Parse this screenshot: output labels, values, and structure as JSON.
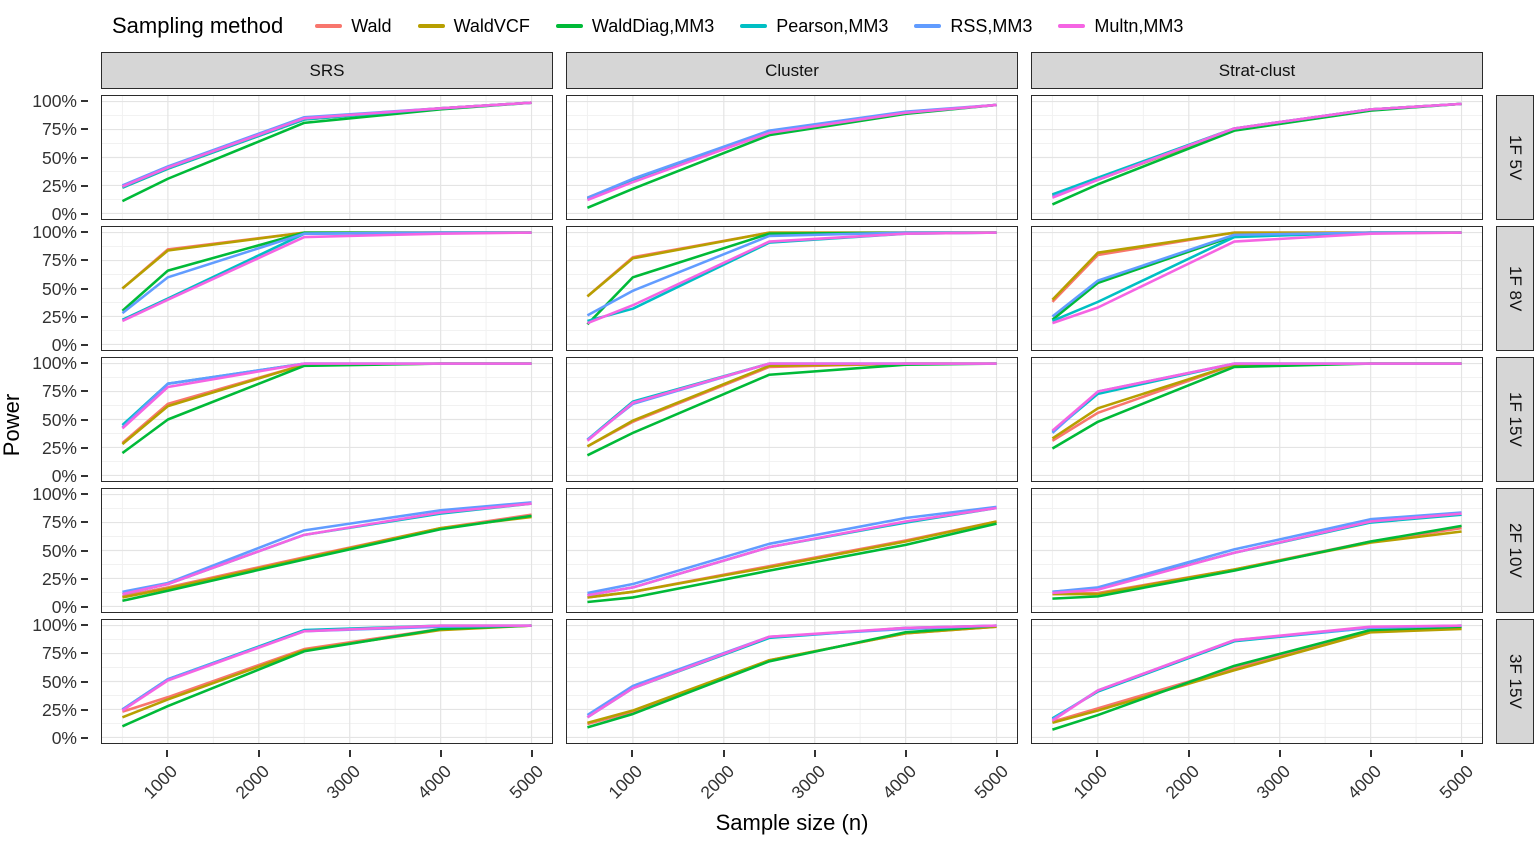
{
  "legend": {
    "title": "Sampling method",
    "items": [
      {
        "label": "Wald",
        "color": "#F8766D"
      },
      {
        "label": "WaldVCF",
        "color": "#B79F00"
      },
      {
        "label": "WaldDiag,MM3",
        "color": "#00BA38"
      },
      {
        "label": "Pearson,MM3",
        "color": "#00BFC4"
      },
      {
        "label": "RSS,MM3",
        "color": "#619CFF"
      },
      {
        "label": "Multn,MM3",
        "color": "#F564E3"
      }
    ]
  },
  "axes": {
    "x_title": "Sample size (n)",
    "y_title": "Power",
    "x_ticks": [
      1000,
      2000,
      3000,
      4000,
      5000
    ],
    "y_ticks": [
      "100%",
      "75%",
      "50%",
      "25%",
      "0%"
    ],
    "y_tick_values": [
      100,
      75,
      50,
      25,
      0
    ]
  },
  "facets": {
    "columns": [
      "SRS",
      "Cluster",
      "Strat-clust"
    ],
    "rows": [
      "1F 5V",
      "1F 8V",
      "1F 15V",
      "2F 10V",
      "3F 15V"
    ]
  },
  "colors": {
    "panel_border": "#2b2b2b",
    "strip_bg": "#d6d6d6",
    "grid_major": "#e4e4e4",
    "grid_minor": "#f1f1f1"
  },
  "chart_data": {
    "type": "line",
    "x": [
      500,
      1000,
      2500,
      4000,
      5000
    ],
    "x_range": [
      275,
      5225
    ],
    "y_range": [
      -5,
      105
    ],
    "x_minor": [
      500,
      1500,
      2500,
      3500,
      4500
    ],
    "y_minor": [
      12.5,
      37.5,
      62.5,
      87.5
    ],
    "series_names": [
      "Wald",
      "WaldVCF",
      "WaldDiag,MM3",
      "Pearson,MM3",
      "RSS,MM3",
      "Multn,MM3"
    ],
    "panels": [
      {
        "column": "SRS",
        "row": "1F 5V",
        "series": [
          {
            "name": "Wald",
            "values": [
              24,
              41,
              85,
              94,
              99
            ]
          },
          {
            "name": "WaldVCF",
            "values": [
              23,
              40,
              84,
              94,
              99
            ]
          },
          {
            "name": "WaldDiag,MM3",
            "values": [
              11,
              31,
              81,
              93,
              99
            ]
          },
          {
            "name": "Pearson,MM3",
            "values": [
              23,
              40,
              84,
              94,
              99
            ]
          },
          {
            "name": "RSS,MM3",
            "values": [
              25,
              42,
              86,
              94,
              99
            ]
          },
          {
            "name": "Multn,MM3",
            "values": [
              24,
              41,
              85,
              94,
              99
            ]
          }
        ]
      },
      {
        "column": "Cluster",
        "row": "1F 5V",
        "series": [
          {
            "name": "Wald",
            "values": [
              14,
              30,
              73,
              90,
              97
            ]
          },
          {
            "name": "WaldVCF",
            "values": [
              13,
              29,
              72,
              90,
              97
            ]
          },
          {
            "name": "WaldDiag,MM3",
            "values": [
              5,
              22,
              70,
              89,
              97
            ]
          },
          {
            "name": "Pearson,MM3",
            "values": [
              13,
              30,
              73,
              90,
              97
            ]
          },
          {
            "name": "RSS,MM3",
            "values": [
              14,
              31,
              74,
              91,
              97
            ]
          },
          {
            "name": "Multn,MM3",
            "values": [
              12,
              28,
              72,
              90,
              97
            ]
          }
        ]
      },
      {
        "column": "Strat-clust",
        "row": "1F 5V",
        "series": [
          {
            "name": "Wald",
            "values": [
              17,
              31,
              76,
              93,
              98
            ]
          },
          {
            "name": "WaldVCF",
            "values": [
              16,
              30,
              75,
              93,
              98
            ]
          },
          {
            "name": "WaldDiag,MM3",
            "values": [
              8,
              26,
              74,
              92,
              98
            ]
          },
          {
            "name": "Pearson,MM3",
            "values": [
              17,
              32,
              76,
              93,
              98
            ]
          },
          {
            "name": "RSS,MM3",
            "values": [
              15,
              30,
              76,
              93,
              98
            ]
          },
          {
            "name": "Multn,MM3",
            "values": [
              14,
              30,
              76,
              93,
              98
            ]
          }
        ]
      },
      {
        "column": "SRS",
        "row": "1F 8V",
        "series": [
          {
            "name": "Wald",
            "values": [
              50,
              85,
              100,
              100,
              100
            ]
          },
          {
            "name": "WaldVCF",
            "values": [
              50,
              84,
              100,
              100,
              100
            ]
          },
          {
            "name": "WaldDiag,MM3",
            "values": [
              30,
              66,
              100,
              100,
              100
            ]
          },
          {
            "name": "Pearson,MM3",
            "values": [
              22,
              41,
              99,
              100,
              100
            ]
          },
          {
            "name": "RSS,MM3",
            "values": [
              28,
              60,
              99,
              100,
              100
            ]
          },
          {
            "name": "Multn,MM3",
            "values": [
              21,
              40,
              96,
              99,
              100
            ]
          }
        ]
      },
      {
        "column": "Cluster",
        "row": "1F 8V",
        "series": [
          {
            "name": "Wald",
            "values": [
              43,
              78,
              100,
              100,
              100
            ]
          },
          {
            "name": "WaldVCF",
            "values": [
              43,
              77,
              100,
              100,
              100
            ]
          },
          {
            "name": "WaldDiag,MM3",
            "values": [
              18,
              60,
              99,
              100,
              100
            ]
          },
          {
            "name": "Pearson,MM3",
            "values": [
              21,
              32,
              91,
              99,
              100
            ]
          },
          {
            "name": "RSS,MM3",
            "values": [
              26,
              48,
              97,
              100,
              100
            ]
          },
          {
            "name": "Multn,MM3",
            "values": [
              19,
              35,
              92,
              99,
              100
            ]
          }
        ]
      },
      {
        "column": "Strat-clust",
        "row": "1F 8V",
        "series": [
          {
            "name": "Wald",
            "values": [
              38,
              80,
              100,
              100,
              100
            ]
          },
          {
            "name": "WaldVCF",
            "values": [
              40,
              82,
              100,
              100,
              100
            ]
          },
          {
            "name": "WaldDiag,MM3",
            "values": [
              22,
              55,
              97,
              100,
              100
            ]
          },
          {
            "name": "Pearson,MM3",
            "values": [
              21,
              38,
              96,
              100,
              100
            ]
          },
          {
            "name": "RSS,MM3",
            "values": [
              25,
              57,
              98,
              100,
              100
            ]
          },
          {
            "name": "Multn,MM3",
            "values": [
              19,
              33,
              92,
              99,
              100
            ]
          }
        ]
      },
      {
        "column": "SRS",
        "row": "1F 15V",
        "series": [
          {
            "name": "Wald",
            "values": [
              29,
              64,
              99,
              100,
              100
            ]
          },
          {
            "name": "WaldVCF",
            "values": [
              28,
              62,
              99,
              100,
              100
            ]
          },
          {
            "name": "WaldDiag,MM3",
            "values": [
              20,
              50,
              98,
              100,
              100
            ]
          },
          {
            "name": "Pearson,MM3",
            "values": [
              45,
              82,
              100,
              100,
              100
            ]
          },
          {
            "name": "RSS,MM3",
            "values": [
              43,
              82,
              100,
              100,
              100
            ]
          },
          {
            "name": "Multn,MM3",
            "values": [
              42,
              79,
              100,
              100,
              100
            ]
          }
        ]
      },
      {
        "column": "Cluster",
        "row": "1F 15V",
        "series": [
          {
            "name": "Wald",
            "values": [
              26,
              48,
              97,
              100,
              100
            ]
          },
          {
            "name": "WaldVCF",
            "values": [
              26,
              49,
              98,
              100,
              100
            ]
          },
          {
            "name": "WaldDiag,MM3",
            "values": [
              18,
              38,
              90,
              99,
              100
            ]
          },
          {
            "name": "Pearson,MM3",
            "values": [
              32,
              66,
              100,
              100,
              100
            ]
          },
          {
            "name": "RSS,MM3",
            "values": [
              32,
              64,
              100,
              100,
              100
            ]
          },
          {
            "name": "Multn,MM3",
            "values": [
              31,
              65,
              100,
              100,
              100
            ]
          }
        ]
      },
      {
        "column": "Strat-clust",
        "row": "1F 15V",
        "series": [
          {
            "name": "Wald",
            "values": [
              31,
              56,
              99,
              100,
              100
            ]
          },
          {
            "name": "WaldVCF",
            "values": [
              33,
              60,
              99,
              100,
              100
            ]
          },
          {
            "name": "WaldDiag,MM3",
            "values": [
              24,
              48,
              97,
              100,
              100
            ]
          },
          {
            "name": "Pearson,MM3",
            "values": [
              39,
              73,
              100,
              100,
              100
            ]
          },
          {
            "name": "RSS,MM3",
            "values": [
              38,
              75,
              100,
              100,
              100
            ]
          },
          {
            "name": "Multn,MM3",
            "values": [
              40,
              75,
              100,
              100,
              100
            ]
          }
        ]
      },
      {
        "column": "SRS",
        "row": "2F 10V",
        "series": [
          {
            "name": "Wald",
            "values": [
              9,
              17,
              44,
              70,
              82
            ]
          },
          {
            "name": "WaldVCF",
            "values": [
              8,
              16,
              43,
              70,
              80
            ]
          },
          {
            "name": "WaldDiag,MM3",
            "values": [
              5,
              14,
              42,
              69,
              81
            ]
          },
          {
            "name": "Pearson,MM3",
            "values": [
              11,
              20,
              64,
              83,
              92
            ]
          },
          {
            "name": "RSS,MM3",
            "values": [
              13,
              21,
              68,
              86,
              93
            ]
          },
          {
            "name": "Multn,MM3",
            "values": [
              11,
              20,
              64,
              84,
              92
            ]
          }
        ]
      },
      {
        "column": "Cluster",
        "row": "2F 10V",
        "series": [
          {
            "name": "Wald",
            "values": [
              8,
              13,
              36,
              59,
              76
            ]
          },
          {
            "name": "WaldVCF",
            "values": [
              8,
              13,
              35,
              58,
              76
            ]
          },
          {
            "name": "WaldDiag,MM3",
            "values": [
              4,
              8,
              32,
              55,
              74
            ]
          },
          {
            "name": "Pearson,MM3",
            "values": [
              10,
              17,
              53,
              75,
              88
            ]
          },
          {
            "name": "RSS,MM3",
            "values": [
              12,
              20,
              56,
              79,
              89
            ]
          },
          {
            "name": "Multn,MM3",
            "values": [
              10,
              17,
              53,
              76,
              88
            ]
          }
        ]
      },
      {
        "column": "Strat-clust",
        "row": "2F 10V",
        "series": [
          {
            "name": "Wald",
            "values": [
              11,
              12,
              33,
              58,
              70
            ]
          },
          {
            "name": "WaldVCF",
            "values": [
              11,
              11,
              33,
              57,
              67
            ]
          },
          {
            "name": "WaldDiag,MM3",
            "values": [
              7,
              9,
              32,
              58,
              72
            ]
          },
          {
            "name": "Pearson,MM3",
            "values": [
              13,
              16,
              48,
              75,
              82
            ]
          },
          {
            "name": "RSS,MM3",
            "values": [
              13,
              17,
              51,
              78,
              84
            ]
          },
          {
            "name": "Multn,MM3",
            "values": [
              12,
              15,
              48,
              76,
              83
            ]
          }
        ]
      },
      {
        "column": "SRS",
        "row": "3F 15V",
        "series": [
          {
            "name": "Wald",
            "values": [
              23,
              36,
              79,
              97,
              100
            ]
          },
          {
            "name": "WaldVCF",
            "values": [
              18,
              34,
              78,
              96,
              100
            ]
          },
          {
            "name": "WaldDiag,MM3",
            "values": [
              10,
              28,
              77,
              97,
              100
            ]
          },
          {
            "name": "Pearson,MM3",
            "values": [
              25,
              52,
              96,
              100,
              100
            ]
          },
          {
            "name": "RSS,MM3",
            "values": [
              25,
              52,
              95,
              99,
              100
            ]
          },
          {
            "name": "Multn,MM3",
            "values": [
              24,
              51,
              95,
              100,
              100
            ]
          }
        ]
      },
      {
        "column": "Cluster",
        "row": "3F 15V",
        "series": [
          {
            "name": "Wald",
            "values": [
              12,
              23,
              69,
              93,
              99
            ]
          },
          {
            "name": "WaldVCF",
            "values": [
              13,
              24,
              69,
              93,
              99
            ]
          },
          {
            "name": "WaldDiag,MM3",
            "values": [
              9,
              21,
              68,
              94,
              100
            ]
          },
          {
            "name": "Pearson,MM3",
            "values": [
              18,
              44,
              89,
              98,
              100
            ]
          },
          {
            "name": "RSS,MM3",
            "values": [
              20,
              46,
              90,
              97,
              100
            ]
          },
          {
            "name": "Multn,MM3",
            "values": [
              18,
              44,
              90,
              98,
              100
            ]
          }
        ]
      },
      {
        "column": "Strat-clust",
        "row": "3F 15V",
        "series": [
          {
            "name": "Wald",
            "values": [
              14,
              26,
              62,
              95,
              98
            ]
          },
          {
            "name": "WaldVCF",
            "values": [
              13,
              24,
              60,
              94,
              97
            ]
          },
          {
            "name": "WaldDiag,MM3",
            "values": [
              7,
              20,
              64,
              96,
              99
            ]
          },
          {
            "name": "Pearson,MM3",
            "values": [
              17,
              41,
              86,
              98,
              100
            ]
          },
          {
            "name": "RSS,MM3",
            "values": [
              16,
              42,
              87,
              98,
              100
            ]
          },
          {
            "name": "Multn,MM3",
            "values": [
              15,
              42,
              87,
              99,
              100
            ]
          }
        ]
      }
    ]
  }
}
